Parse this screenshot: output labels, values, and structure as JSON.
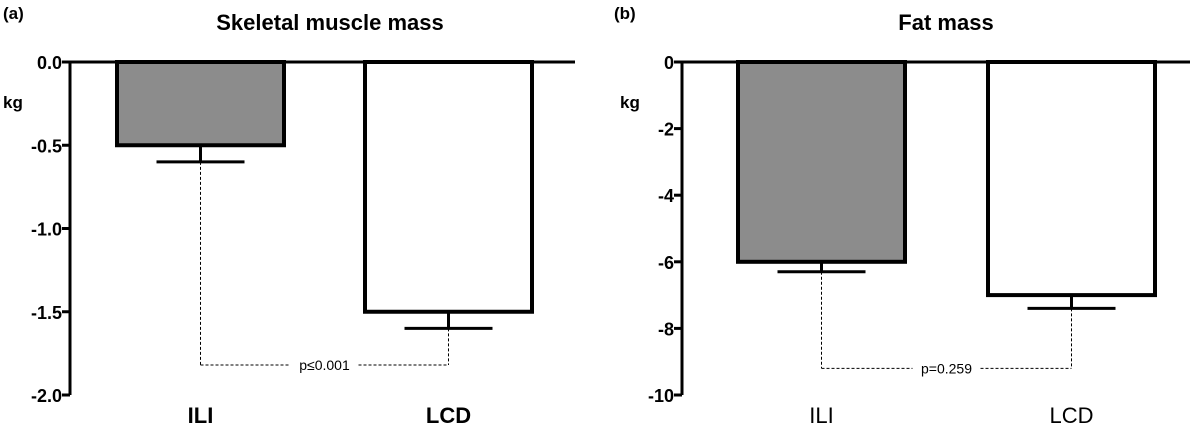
{
  "chart_data": [
    {
      "type": "bar",
      "panel_label": "(a)",
      "title": "Skeletal muscle mass",
      "ylabel": "kg",
      "xlabel": "",
      "categories": [
        "ILI",
        "LCD"
      ],
      "values": [
        -0.5,
        -1.5
      ],
      "errors": [
        0.1,
        0.1
      ],
      "bar_colors": [
        "#8c8c8c",
        "#ffffff"
      ],
      "ylim": [
        -2.0,
        0.0
      ],
      "yticks": [
        0.0,
        -0.5,
        -1.0,
        -1.5,
        -2.0
      ],
      "ytick_labels": [
        "0.0",
        "-0.5",
        "-1.0",
        "-1.5",
        "-2.0"
      ],
      "annotation": "p≤0.001",
      "annotation_y": -1.82,
      "category_label_style": "bold",
      "grid": false,
      "legend": "none"
    },
    {
      "type": "bar",
      "panel_label": "(b)",
      "title": "Fat mass",
      "ylabel": "kg",
      "xlabel": "",
      "categories": [
        "ILI",
        "LCD"
      ],
      "values": [
        -6,
        -7
      ],
      "errors": [
        0.3,
        0.4
      ],
      "bar_colors": [
        "#8c8c8c",
        "#ffffff"
      ],
      "ylim": [
        -10,
        0
      ],
      "yticks": [
        0,
        -2,
        -4,
        -6,
        -8,
        -10
      ],
      "ytick_labels": [
        "0",
        "-2",
        "-4",
        "-6",
        "-8",
        "-10"
      ],
      "annotation": "p=0.259",
      "annotation_y": -9.2,
      "category_label_style": "normal",
      "grid": false,
      "legend": "none"
    }
  ]
}
